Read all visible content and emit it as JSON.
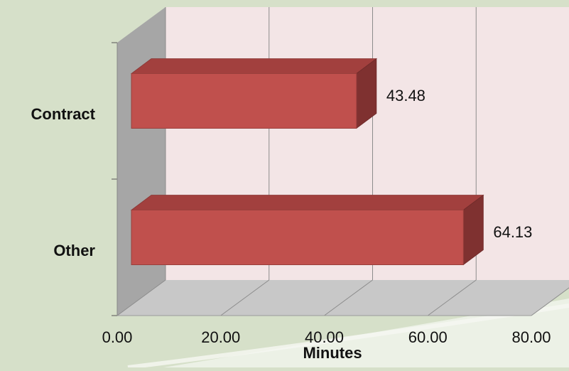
{
  "chart_data": {
    "type": "bar",
    "orientation": "horizontal",
    "style": "3d",
    "categories": [
      "Contract",
      "Other"
    ],
    "values": [
      43.48,
      64.13
    ],
    "data_labels": [
      "43.48",
      "64.13"
    ],
    "xlabel": "Minutes",
    "ylabel": "",
    "xlim": [
      0,
      80
    ],
    "x_ticks": [
      "0.00",
      "20.00",
      "40.00",
      "60.00",
      "80.00"
    ],
    "x_tick_values": [
      0,
      20,
      40,
      60,
      80
    ],
    "grid": true,
    "legend": "none",
    "colors": {
      "bar_front": "#c0504d",
      "bar_top": "#a2403e",
      "bar_side": "#7f3130",
      "back_wall": "#f3e5e6",
      "side_wall": "#a6a6a6",
      "floor": "#c8c8c8",
      "background": "#d6e0c9",
      "gridline": "#8c8c8c"
    }
  }
}
